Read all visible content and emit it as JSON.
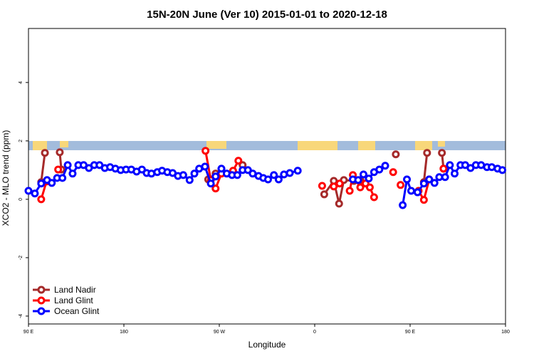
{
  "chart_data": {
    "type": "line",
    "title": "15N-20N June (Ver 10)   2015-01-01 to 2020-12-18",
    "xlabel": "Longitude",
    "ylabel": "XCO2 - MLO trend (ppm)",
    "xlim": [
      90,
      540
    ],
    "xticks": [
      {
        "value": 90,
        "label": "90 E"
      },
      180,
      {
        "value": 270,
        "label": "90 W"
      },
      {
        "value": 360,
        "label": "0"
      },
      {
        "value": 450,
        "label": "90 E"
      },
      180
    ],
    "ylim": [
      -4.27,
      5.85
    ],
    "yticks": [
      -4,
      -2,
      0,
      2,
      4
    ],
    "legend": "bottom-left",
    "series": [
      {
        "name": "Land Nadir",
        "color": "#a52a2a",
        "x": [
          102,
          105.5,
          null,
          119.5,
          121,
          null,
          259.5,
          266.5,
          null,
          292,
          null,
          369,
          378,
          383,
          387.5,
          397,
          403,
          null,
          436.5,
          null,
          463,
          466,
          null,
          480,
          481.5
        ],
        "values": [
          0.59,
          1.59,
          null,
          1.61,
          1.02,
          null,
          0.68,
          0.88,
          null,
          1.17,
          null,
          0.17,
          0.63,
          -0.15,
          0.66,
          0.63,
          0.66,
          null,
          1.54,
          null,
          0.59,
          1.59,
          null,
          1.59,
          1.05
        ]
      },
      {
        "name": "Land Glint",
        "color": "#ff0000",
        "x": [
          102,
          107,
          null,
          118,
          null,
          257,
          262,
          266.5,
          272,
          null,
          283,
          288,
          null,
          367,
          null,
          378,
          383.5,
          null,
          393,
          396,
          403,
          408,
          412,
          416,
          null,
          434,
          null,
          441,
          null,
          458,
          463,
          468,
          null,
          481.5
        ],
        "values": [
          0.0,
          0.61,
          null,
          1.02,
          null,
          1.66,
          0.66,
          0.37,
          0.88,
          null,
          0.98,
          1.32,
          null,
          0.46,
          null,
          0.44,
          0.54,
          null,
          0.29,
          0.83,
          0.41,
          0.54,
          0.41,
          0.07,
          null,
          0.93,
          null,
          0.49,
          null,
          0.29,
          -0.02,
          0.68,
          null,
          1.05
        ]
      },
      {
        "name": "Ocean Glint",
        "color": "#0000ff",
        "x": [
          90,
          96,
          102,
          107.5,
          112,
          117,
          122,
          127,
          131.6,
          137,
          142,
          147,
          152,
          157,
          162,
          167,
          172,
          177,
          182,
          187,
          192,
          197,
          201.5,
          206,
          211.5,
          216,
          221,
          226,
          231,
          236,
          242,
          246.5,
          251,
          256.5,
          262,
          266.5,
          272,
          277,
          282,
          287,
          292,
          297,
          301.5,
          307,
          311.5,
          316,
          321.5,
          326,
          331,
          336.5,
          344,
          null,
          396,
          401,
          406,
          411,
          416,
          421,
          426.5,
          null,
          443,
          447,
          451,
          457,
          463,
          468,
          473,
          477.5,
          483,
          487.5,
          492,
          497.5,
          502,
          507,
          512,
          517,
          522.5,
          527,
          532.5,
          537
        ],
        "values": [
          0.29,
          0.2,
          0.54,
          0.66,
          0.56,
          0.73,
          0.73,
          1.17,
          0.88,
          1.17,
          1.17,
          1.07,
          1.17,
          1.17,
          1.07,
          1.1,
          1.05,
          1.0,
          1.02,
          1.02,
          0.95,
          1.02,
          0.9,
          0.88,
          0.93,
          0.98,
          0.93,
          0.9,
          0.8,
          0.83,
          0.66,
          0.88,
          1.05,
          1.12,
          0.54,
          0.78,
          1.05,
          0.88,
          0.83,
          0.83,
          1.0,
          1.0,
          0.88,
          0.8,
          0.73,
          0.68,
          0.83,
          0.68,
          0.85,
          0.9,
          0.98,
          null,
          0.68,
          0.66,
          0.85,
          0.71,
          0.93,
          1.02,
          1.15,
          null,
          -0.2,
          0.68,
          0.29,
          0.24,
          0.54,
          0.68,
          0.56,
          0.76,
          0.76,
          1.17,
          0.88,
          1.17,
          1.17,
          1.07,
          1.17,
          1.17,
          1.1,
          1.1,
          1.05,
          1.0
        ]
      }
    ]
  }
}
